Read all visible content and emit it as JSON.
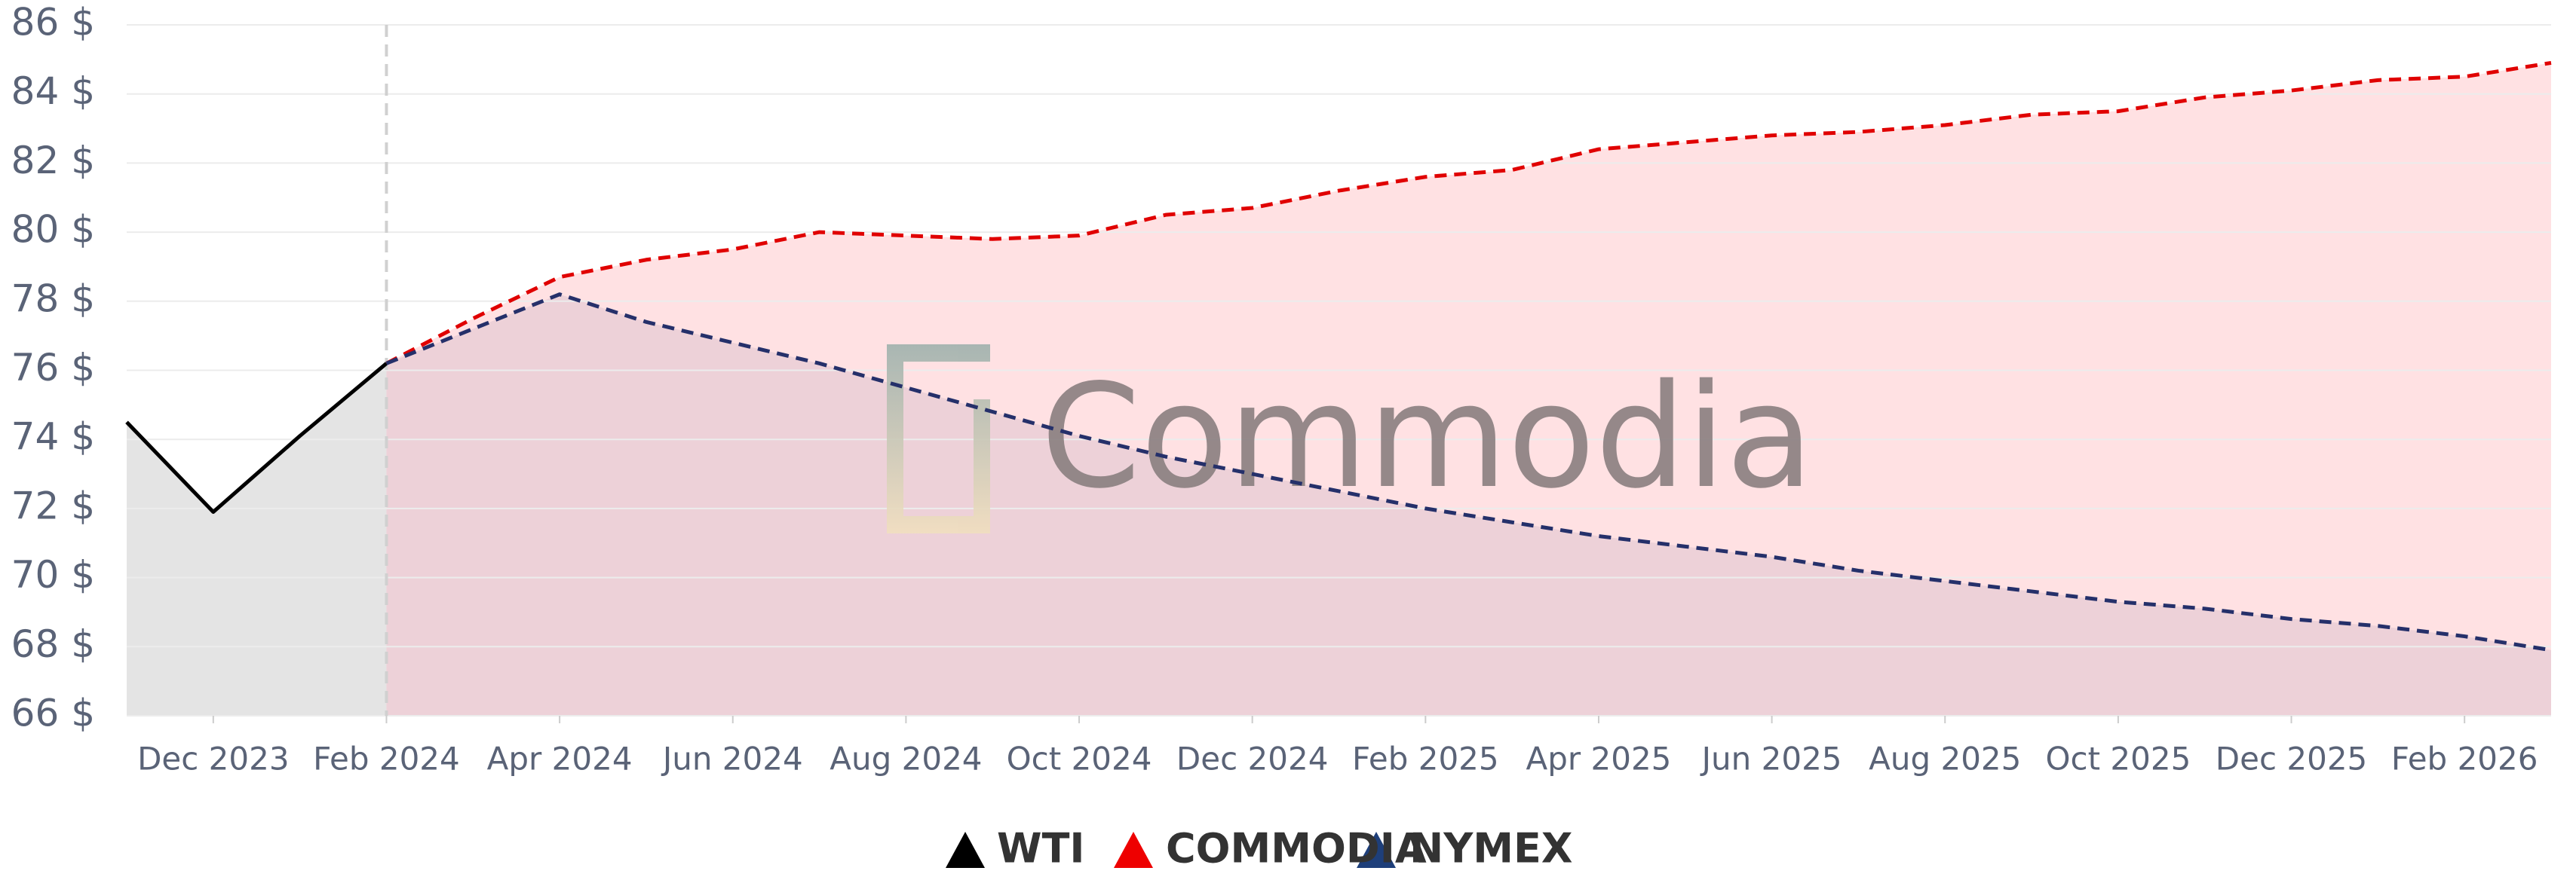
{
  "chart_data": {
    "type": "line",
    "watermark": "Commodia",
    "categories": [
      null,
      "Dec 2023",
      null,
      "Feb 2024",
      null,
      "Apr 2024",
      null,
      "Jun 2024",
      null,
      "Aug 2024",
      null,
      "Oct 2024",
      null,
      "Dec 2024",
      null,
      "Feb 2025",
      null,
      "Apr 2025",
      null,
      "Jun 2025",
      null,
      "Aug 2025",
      null,
      "Oct 2025",
      null,
      "Dec 2025",
      null,
      "Feb 2026",
      null
    ],
    "series": [
      {
        "name": "WTI",
        "color": "#000000",
        "fill": "#e4e4e4",
        "dashed": false,
        "values": [
          74.5,
          71.9,
          74.1,
          76.2,
          null,
          null,
          null,
          null,
          null,
          null,
          null,
          null,
          null,
          null,
          null,
          null,
          null,
          null,
          null,
          null,
          null,
          null,
          null,
          null,
          null,
          null,
          null,
          null,
          null
        ]
      },
      {
        "name": "COMMODIA",
        "color": "#e00000",
        "fill": "#ffe1e3",
        "dashed": true,
        "values": [
          null,
          null,
          null,
          76.2,
          77.5,
          78.7,
          79.2,
          79.5,
          80.0,
          79.9,
          79.8,
          79.9,
          80.5,
          80.7,
          81.2,
          81.6,
          81.8,
          82.4,
          82.6,
          82.8,
          82.9,
          83.1,
          83.4,
          83.5,
          83.9,
          84.1,
          84.4,
          84.5,
          84.9
        ]
      },
      {
        "name": "NYMEX",
        "color": "#25306a",
        "fill": "rgba(60,50,110,0.09)",
        "dashed": true,
        "values": [
          null,
          null,
          null,
          76.2,
          77.2,
          78.2,
          77.4,
          76.8,
          76.2,
          75.5,
          74.8,
          74.1,
          73.5,
          73.0,
          72.5,
          72.0,
          71.6,
          71.2,
          70.9,
          70.6,
          70.2,
          69.9,
          69.6,
          69.3,
          69.1,
          68.8,
          68.6,
          68.3,
          67.9
        ]
      }
    ],
    "legend_order": [
      0,
      2,
      1
    ],
    "ylim": [
      66,
      86
    ],
    "yticks": [
      {
        "value": 66,
        "label": "66 $"
      },
      {
        "value": 68,
        "label": "68 $"
      },
      {
        "value": 70,
        "label": "70 $"
      },
      {
        "value": 72,
        "label": "72 $"
      },
      {
        "value": 74,
        "label": "74 $"
      },
      {
        "value": 76,
        "label": "76 $"
      },
      {
        "value": 78,
        "label": "78 $"
      },
      {
        "value": 80,
        "label": "80 $"
      },
      {
        "value": 82,
        "label": "82 $"
      },
      {
        "value": 84,
        "label": "84 $"
      },
      {
        "value": 86,
        "label": "86 $"
      }
    ],
    "grid": true
  }
}
